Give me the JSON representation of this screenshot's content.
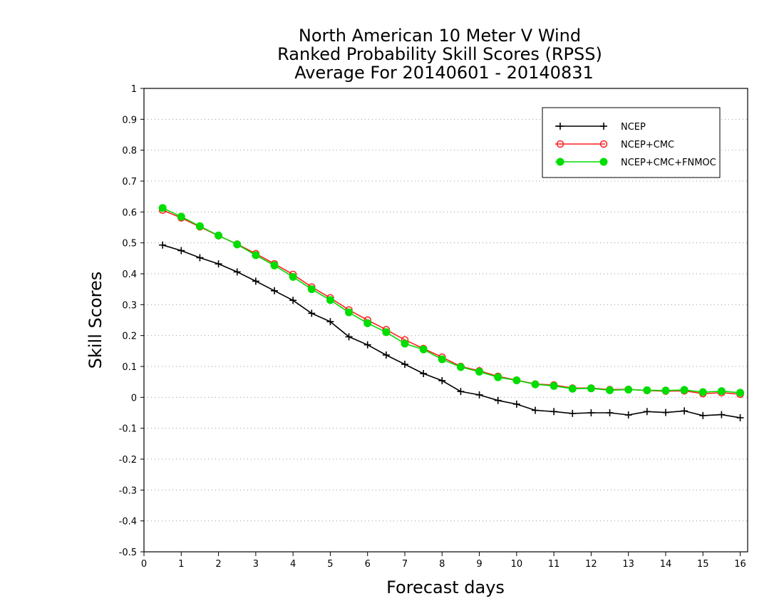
{
  "chart_data": {
    "type": "line",
    "title": [
      "North American 10 Meter V Wind",
      "Ranked Probability Skill Scores (RPSS)",
      "Average For 20140601 - 20140831"
    ],
    "xlabel": "Forecast days",
    "ylabel": "Skill Scores",
    "xlim": [
      0,
      16.2
    ],
    "ylim": [
      -0.5,
      1
    ],
    "xticks": [
      0,
      1,
      2,
      3,
      4,
      5,
      6,
      7,
      8,
      9,
      10,
      11,
      12,
      13,
      14,
      15,
      16
    ],
    "yticks": [
      -0.5,
      -0.4,
      -0.3,
      -0.2,
      -0.1,
      0,
      0.1,
      0.2,
      0.3,
      0.4,
      0.5,
      0.6,
      0.7,
      0.8,
      0.9,
      1
    ],
    "ytick_labels": [
      "-0.5",
      "-0.4",
      "-0.3",
      "-0.2",
      "-0.1",
      "0",
      "0.1",
      "0.2",
      "0.3",
      "0.4",
      "0.5",
      "0.6",
      "0.7",
      "0.8",
      "0.9",
      "1"
    ],
    "grid": "horizontal dotted",
    "legend_position": "top-right",
    "x": [
      0.5,
      1,
      1.5,
      2,
      2.5,
      3,
      3.5,
      4,
      4.5,
      5,
      5.5,
      6,
      6.5,
      7,
      7.5,
      8,
      8.5,
      9,
      9.5,
      10,
      10.5,
      11,
      11.5,
      12,
      12.5,
      13,
      13.5,
      14,
      14.5,
      15,
      15.5,
      16
    ],
    "series": [
      {
        "name": "NCEP",
        "color": "#000000",
        "marker": "plus",
        "values": [
          0.493,
          0.475,
          0.452,
          0.432,
          0.406,
          0.376,
          0.345,
          0.314,
          0.272,
          0.245,
          0.196,
          0.17,
          0.137,
          0.107,
          0.077,
          0.054,
          0.019,
          0.008,
          -0.01,
          -0.022,
          -0.042,
          -0.046,
          -0.052,
          -0.05,
          -0.05,
          -0.057,
          -0.046,
          -0.049,
          -0.044,
          -0.059,
          -0.056,
          -0.066
        ]
      },
      {
        "name": "NCEP+CMC",
        "color": "#ff2020",
        "marker": "open-circle",
        "values": [
          0.606,
          0.581,
          0.552,
          0.523,
          0.496,
          0.465,
          0.432,
          0.398,
          0.357,
          0.322,
          0.283,
          0.25,
          0.219,
          0.186,
          0.158,
          0.13,
          0.1,
          0.086,
          0.068,
          0.056,
          0.043,
          0.04,
          0.03,
          0.03,
          0.025,
          0.026,
          0.022,
          0.02,
          0.021,
          0.012,
          0.015,
          0.01
        ]
      },
      {
        "name": "NCEP+CMC+FNMOC",
        "color": "#00dd00",
        "marker": "filled-circle",
        "values": [
          0.613,
          0.585,
          0.554,
          0.524,
          0.495,
          0.46,
          0.427,
          0.39,
          0.35,
          0.315,
          0.275,
          0.24,
          0.211,
          0.174,
          0.155,
          0.123,
          0.098,
          0.083,
          0.065,
          0.055,
          0.042,
          0.037,
          0.028,
          0.029,
          0.023,
          0.025,
          0.023,
          0.022,
          0.024,
          0.017,
          0.02,
          0.015
        ]
      }
    ]
  }
}
